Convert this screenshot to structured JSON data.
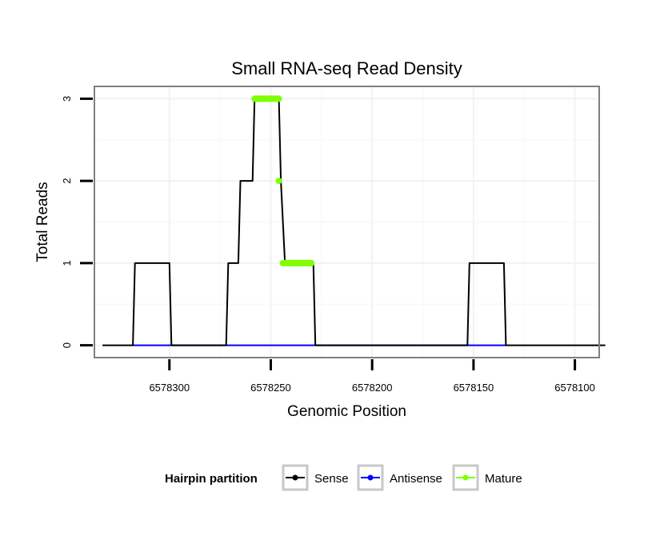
{
  "chart_data": {
    "type": "line",
    "title": "Small RNA-seq Read Density",
    "xlabel": "Genomic Position",
    "ylabel": "Total Reads",
    "x_reversed": true,
    "xlim": [
      6578337,
      6578088
    ],
    "ylim": [
      -0.15,
      3.15
    ],
    "x_ticks": [
      6578300,
      6578250,
      6578200,
      6578150,
      6578100
    ],
    "x_tick_labels": [
      "6578300",
      "6578250",
      "6578200",
      "6578150",
      "6578100"
    ],
    "y_ticks": [
      0,
      1,
      2,
      3
    ],
    "y_tick_labels": [
      "0",
      "1",
      "2",
      "3"
    ],
    "grid": true,
    "legend": {
      "title": "Hairpin partition",
      "position": "bottom",
      "entries": [
        {
          "label": "Sense",
          "color": "#000000"
        },
        {
          "label": "Antisense",
          "color": "#0000ff"
        },
        {
          "label": "Mature",
          "color": "#7fff00"
        }
      ]
    },
    "series": [
      {
        "name": "Sense",
        "color": "#000000",
        "x": [
          6578333,
          6578318,
          6578317,
          6578300,
          6578299,
          6578272,
          6578271,
          6578266,
          6578265,
          6578259,
          6578258,
          6578246,
          6578245,
          6578243,
          6578242,
          6578229,
          6578228,
          6578153,
          6578152,
          6578135,
          6578134,
          6578085
        ],
        "y": [
          0,
          0,
          1,
          1,
          0,
          0,
          1,
          1,
          2,
          2,
          3,
          3,
          2,
          1,
          1,
          1,
          0,
          0,
          1,
          1,
          0,
          0
        ]
      },
      {
        "name": "Antisense",
        "color": "#0000ff",
        "x": [
          6578318,
          6578299,
          6578272,
          6578229,
          6578152,
          6578134
        ],
        "y": [
          0,
          0,
          0,
          0,
          0,
          0
        ]
      },
      {
        "name": "Mature",
        "color": "#7fff00",
        "segments": [
          {
            "x": [
              6578258,
              6578246
            ],
            "y": [
              3,
              3
            ]
          },
          {
            "x": [
              6578246,
              6578246
            ],
            "y": [
              2,
              2
            ]
          },
          {
            "x": [
              6578244,
              6578230
            ],
            "y": [
              1,
              1
            ]
          }
        ]
      }
    ]
  }
}
